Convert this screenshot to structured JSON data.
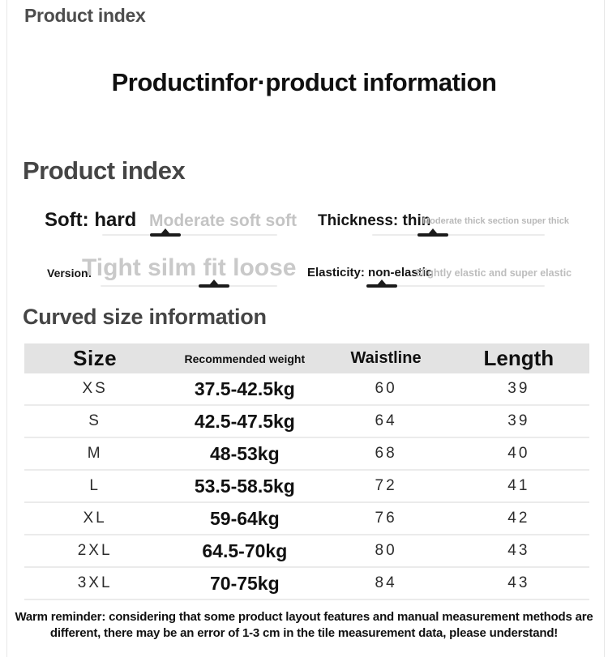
{
  "page": {
    "top_label": "Product index",
    "main_title": "Productinfor·product information",
    "index_title": "Product index",
    "size_title": "Curved size information"
  },
  "attributes": [
    {
      "name": "softness",
      "label": "Soft: hard",
      "scale": "Moderate soft soft",
      "marker_position_pct": 36,
      "marker_style": "left:36%"
    },
    {
      "name": "thickness",
      "label": "Thickness: thin",
      "scale": "Moderate thick section super thick",
      "marker_position_pct": 35,
      "marker_style": "left:35%"
    },
    {
      "name": "version",
      "label": "Version:",
      "scale": "Tight silm fit loose",
      "marker_position_pct": 64,
      "marker_style": "left:64%"
    },
    {
      "name": "elasticity",
      "label": "Elasticity: non-elastic",
      "scale": "Slightly elastic and super elastic",
      "marker_position_pct": 8,
      "marker_style": "left:8%"
    }
  ],
  "size_table": {
    "headers": [
      "Size",
      "Recommended weight",
      "Waistline",
      "Length"
    ],
    "rows": [
      {
        "size": "XS",
        "weight": "37.5-42.5kg",
        "waistline": "60",
        "length": "39"
      },
      {
        "size": "S",
        "weight": "42.5-47.5kg",
        "waistline": "64",
        "length": "39"
      },
      {
        "size": "M",
        "weight": "48-53kg",
        "waistline": "68",
        "length": "40"
      },
      {
        "size": "L",
        "weight": "53.5-58.5kg",
        "waistline": "72",
        "length": "41"
      },
      {
        "size": "XL",
        "weight": "59-64kg",
        "waistline": "76",
        "length": "42"
      },
      {
        "size": "2XL",
        "weight": "64.5-70kg",
        "waistline": "80",
        "length": "43"
      },
      {
        "size": "3XL",
        "weight": "70-75kg",
        "waistline": "84",
        "length": "43"
      }
    ]
  },
  "reminder": {
    "line1": "Warm reminder: considering that some product layout features and manual measurement methods are",
    "line2": "different, there may be an error of 1-3 cm in the tile measurement data, please understand!"
  },
  "colors": {
    "heading_gray": "#454545",
    "light_scale_text": "#c5c5c5",
    "table_header_bg": "#e3e3e3",
    "marker_black": "#1b1b1b"
  }
}
